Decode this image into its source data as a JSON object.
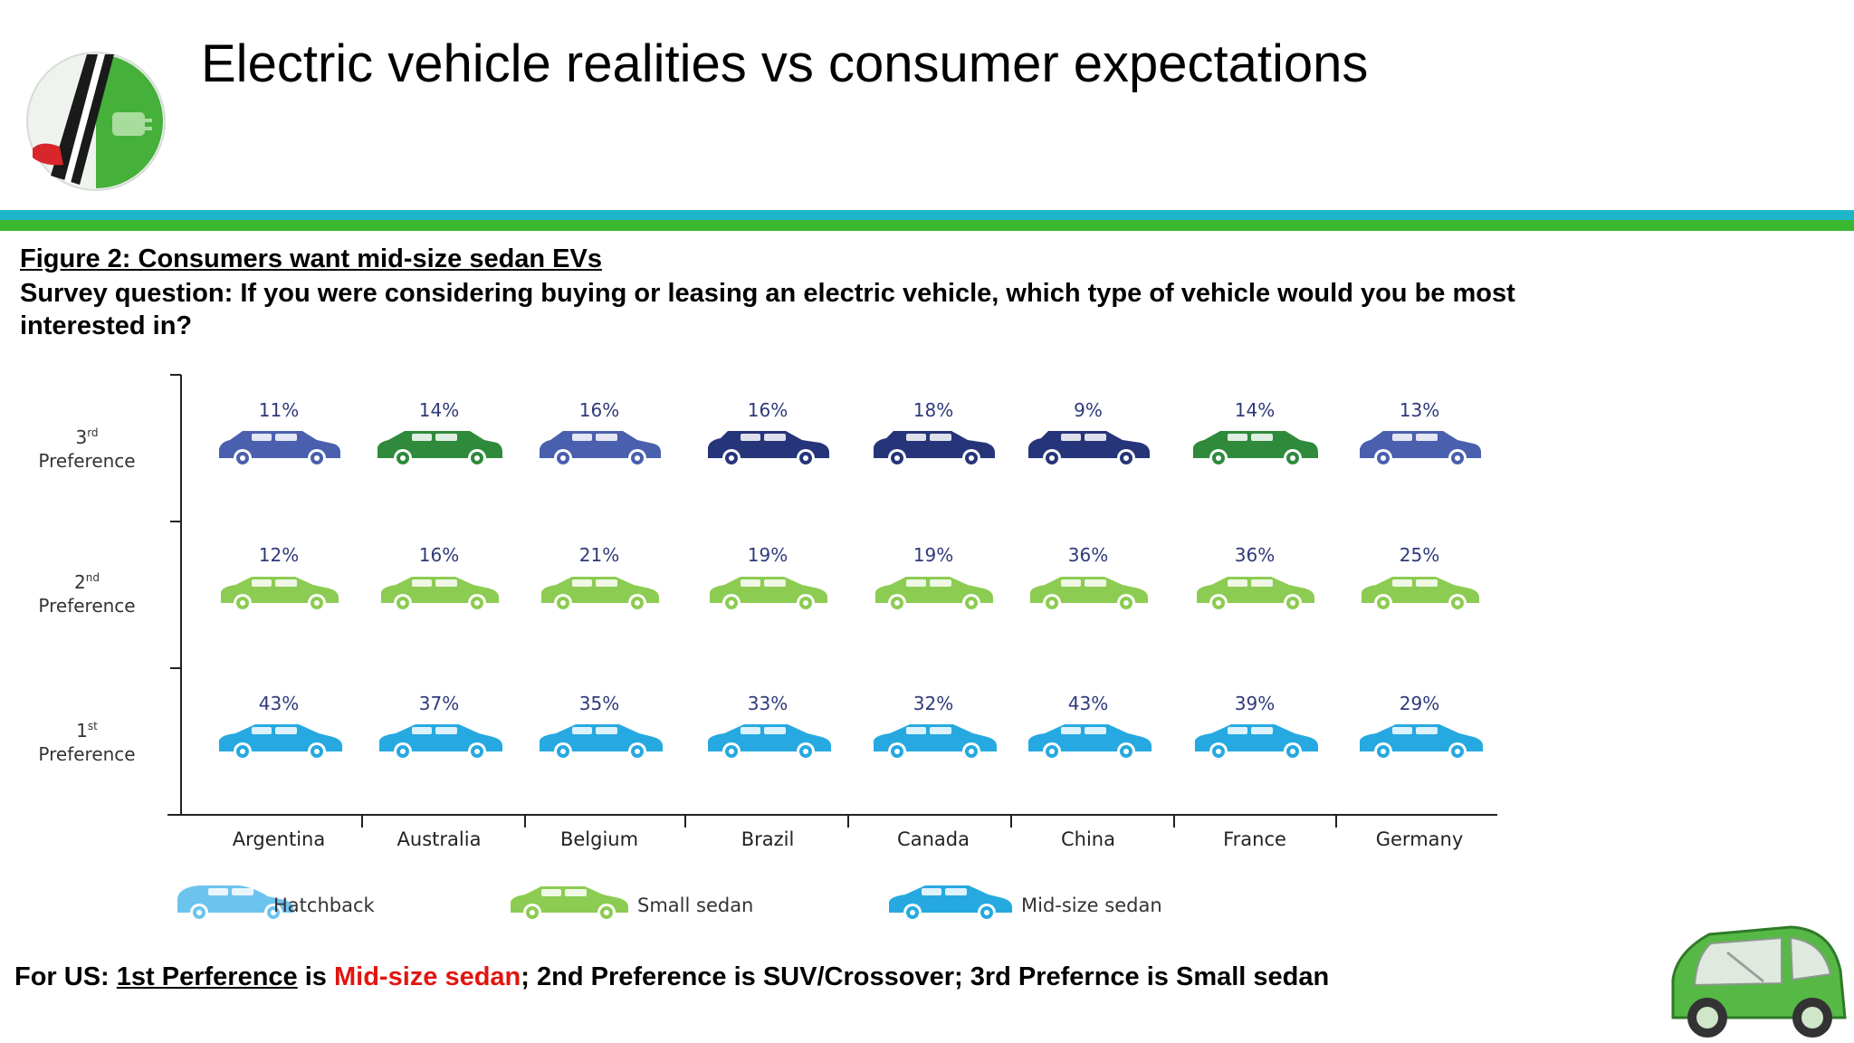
{
  "header": {
    "title": "Electric vehicle realities vs consumer expectations"
  },
  "figure": {
    "title": "Figure 2: Consumers want mid-size sedan EVs",
    "question": "Survey question: If you were considering buying or leasing an electric vehicle, which type of vehicle would you be most interested in?"
  },
  "chart_data": {
    "type": "table",
    "categories": [
      "Argentina",
      "Australia",
      "Belgium",
      "Brazil",
      "Canada",
      "China",
      "France",
      "Germany"
    ],
    "rows": [
      {
        "rank": "3",
        "suffix": "rd",
        "label": "Preference",
        "values": [
          "11%",
          "14%",
          "16%",
          "16%",
          "18%",
          "9%",
          "14%",
          "13%"
        ],
        "vehicles": [
          "suv",
          "wagon",
          "suv",
          "crossover",
          "crossover",
          "crossover",
          "wagon",
          "suv"
        ]
      },
      {
        "rank": "2",
        "suffix": "nd",
        "label": "Preference",
        "values": [
          "12%",
          "16%",
          "21%",
          "19%",
          "19%",
          "36%",
          "36%",
          "25%"
        ],
        "vehicles": [
          "small-sedan",
          "small-sedan",
          "small-sedan",
          "small-sedan",
          "small-sedan",
          "small-sedan",
          "small-sedan",
          "small-sedan"
        ]
      },
      {
        "rank": "1",
        "suffix": "st",
        "label": "Preference",
        "values": [
          "43%",
          "37%",
          "35%",
          "33%",
          "32%",
          "43%",
          "39%",
          "29%"
        ],
        "vehicles": [
          "midsize-sedan",
          "midsize-sedan",
          "midsize-sedan",
          "midsize-sedan",
          "midsize-sedan",
          "midsize-sedan",
          "midsize-sedan",
          "midsize-sedan"
        ]
      }
    ],
    "legend": [
      {
        "key": "hatchback",
        "label": "Hatchback"
      },
      {
        "key": "small-sedan",
        "label": "Small sedan"
      },
      {
        "key": "midsize-sedan",
        "label": "Mid-size sedan"
      }
    ],
    "colors": {
      "suv": "#4a5fae",
      "crossover": "#26357a",
      "wagon": "#2f8a3c",
      "small-sedan": "#8ccc52",
      "midsize-sedan": "#26a9e0",
      "hatchback": "#6cc4ee",
      "value_text": "#2f3a7a"
    },
    "legend_position": "bottom",
    "grid": false
  },
  "footer": {
    "prefix": "For US: ",
    "first_pref": "1st Perference",
    "is1": " is ",
    "first_value": "Mid-size sedan",
    "rest": "; 2nd Preference is SUV/Crossover; 3rd Prefernce is Small sedan"
  }
}
